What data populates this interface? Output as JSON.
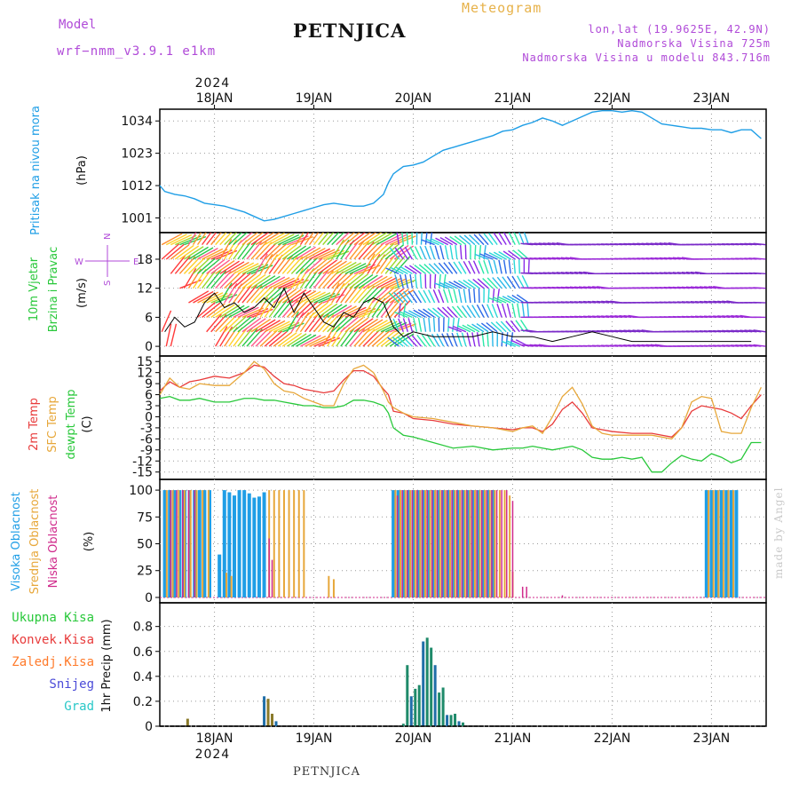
{
  "header": {
    "model_label": "Model",
    "model_name": "wrf−nmm_v3.9.1 e1km",
    "station": "PETNJICA",
    "title": "Meteogram",
    "lonlat": "lon,lat (19.9625E, 42.9N)",
    "elevation": "Nadmorska Visina 725m",
    "model_elevation": "Nadmorska Visina u modelu 843.716m"
  },
  "footer": {
    "station": "PETNJICA",
    "watermark": "made by Angel"
  },
  "colors": {
    "pressure": "#1f9ee6",
    "temp2m": "#e83b3b",
    "sfc": "#e7a73a",
    "dewpt": "#28c83a",
    "high_cloud": "#1f9ee6",
    "mid_cloud": "#e7a73a",
    "low_cloud": "#d02b8c",
    "total_precip": "#28c83a",
    "conv_precip": "#e83b3b",
    "frz_precip": "#ff7a2a",
    "snow": "#4b4bd8",
    "hail": "#2ac8c8",
    "wind_speed": "#000000",
    "wind_gust": "#e83b3b",
    "purple": "#b04ad8"
  },
  "chart_data": [
    {
      "type": "line",
      "name": "pressure",
      "ylabel": "Pritisak na nivou mora",
      "unit": "(hPa)",
      "yticks": [
        1001,
        1012,
        1023,
        1034
      ],
      "ylim": [
        996,
        1038
      ],
      "x_days": [
        "18JAN",
        "19JAN",
        "20JAN",
        "21JAN",
        "22JAN",
        "23JAN"
      ],
      "top_year": "2024",
      "xlim_days": [
        -0.55,
        5.55
      ],
      "series": [
        {
          "x": [
            -0.55,
            -0.5,
            -0.4,
            -0.3,
            -0.2,
            -0.1,
            0,
            0.1,
            0.2,
            0.3,
            0.4,
            0.5,
            0.6,
            0.7,
            0.8,
            0.9,
            1.0,
            1.1,
            1.2,
            1.3,
            1.4,
            1.5,
            1.6,
            1.7,
            1.75,
            1.8,
            1.9,
            2.0,
            2.1,
            2.2,
            2.3,
            2.4,
            2.5,
            2.6,
            2.7,
            2.8,
            2.9,
            3.0,
            3.1,
            3.2,
            3.3,
            3.4,
            3.5,
            3.6,
            3.7,
            3.8,
            3.9,
            4.0,
            4.1,
            4.2,
            4.3,
            4.4,
            4.5,
            4.6,
            4.7,
            4.8,
            4.9,
            5.0,
            5.1,
            5.2,
            5.3,
            5.4,
            5.5
          ],
          "values": [
            1012,
            1010,
            1009,
            1008.5,
            1007.5,
            1006,
            1005.5,
            1005,
            1004,
            1003,
            1001.5,
            1000,
            1000.5,
            1001.5,
            1002.5,
            1003.5,
            1004.5,
            1005.5,
            1006,
            1005.5,
            1005,
            1005,
            1006,
            1009,
            1013,
            1016,
            1018.5,
            1019,
            1020,
            1022,
            1024,
            1025,
            1026,
            1027,
            1028,
            1029,
            1030.5,
            1031,
            1032.5,
            1033.5,
            1035,
            1034,
            1032.5,
            1034,
            1035.5,
            1037,
            1037.5,
            1037.5,
            1037,
            1037.5,
            1037,
            1035,
            1033,
            1032.5,
            1032,
            1031.5,
            1031.5,
            1031,
            1031,
            1030,
            1031,
            1031,
            1028
          ]
        }
      ]
    },
    {
      "type": "scatter",
      "name": "wind",
      "ylabel": "10m Vjetar",
      "ylabel2": "Brzina i Pravac",
      "unit": "(m/s)",
      "yticks": [
        0,
        6,
        12,
        18
      ],
      "ylim": [
        -2,
        23.5
      ],
      "compass": [
        "N",
        "W",
        "E",
        "S"
      ],
      "series": [
        {
          "name": "speed",
          "x": [
            -0.5,
            -0.4,
            -0.3,
            -0.2,
            -0.1,
            0,
            0.1,
            0.2,
            0.3,
            0.4,
            0.5,
            0.6,
            0.7,
            0.8,
            0.9,
            1.0,
            1.1,
            1.2,
            1.3,
            1.4,
            1.5,
            1.6,
            1.7,
            1.8,
            1.9,
            2.0,
            2.2,
            2.4,
            2.6,
            2.8,
            3.0,
            3.2,
            3.4,
            3.6,
            3.8,
            4.0,
            4.2,
            4.4,
            4.6,
            4.8,
            5.0,
            5.2,
            5.4
          ],
          "values": [
            3,
            6,
            4,
            5,
            9,
            11,
            8,
            9,
            7,
            8,
            10,
            8,
            12,
            7,
            11,
            8,
            5,
            4,
            7,
            6,
            9,
            10,
            9,
            4,
            2,
            3,
            2,
            2,
            2,
            3,
            2,
            2,
            1,
            2,
            3,
            2,
            1,
            1,
            1,
            1,
            1,
            1,
            1
          ]
        }
      ]
    },
    {
      "type": "line",
      "name": "temperature",
      "ylabel": "2m Temp",
      "ylabel2": "SFC Temp",
      "ylabel3": "dewpt Temp",
      "unit": "(C)",
      "yticks": [
        15,
        12,
        9,
        6,
        3,
        0,
        -3,
        -6,
        -9,
        -12,
        -15
      ],
      "ylim": [
        -17,
        16.5
      ],
      "series": [
        {
          "name": "2m Temp",
          "x": [
            -0.55,
            -0.45,
            -0.35,
            -0.25,
            -0.15,
            0,
            0.15,
            0.3,
            0.4,
            0.5,
            0.6,
            0.7,
            0.8,
            0.9,
            1.0,
            1.1,
            1.2,
            1.3,
            1.4,
            1.5,
            1.6,
            1.7,
            1.75,
            1.8,
            1.9,
            2.0,
            2.2,
            2.4,
            2.6,
            2.8,
            3.0,
            3.1,
            3.2,
            3.3,
            3.4,
            3.5,
            3.6,
            3.7,
            3.8,
            3.9,
            4.0,
            4.2,
            4.4,
            4.6,
            4.7,
            4.8,
            4.9,
            5.0,
            5.1,
            5.2,
            5.3,
            5.4,
            5.5
          ],
          "values": [
            7,
            9.5,
            8,
            9.5,
            10,
            11,
            10.5,
            12,
            14,
            13.5,
            11,
            9,
            8.5,
            7.5,
            7,
            6.5,
            7,
            10,
            12.5,
            12.5,
            11,
            7.5,
            6,
            1.5,
            1,
            -0.5,
            -1,
            -2,
            -2.5,
            -3,
            -3.5,
            -3,
            -3,
            -4,
            -2,
            2,
            4,
            1,
            -3,
            -3.5,
            -4,
            -4.5,
            -4.5,
            -5.5,
            -3,
            1.5,
            3,
            2.5,
            2,
            1,
            -0.5,
            3,
            6
          ]
        },
        {
          "name": "SFC Temp",
          "x": [
            -0.55,
            -0.45,
            -0.35,
            -0.25,
            -0.15,
            0,
            0.15,
            0.3,
            0.4,
            0.5,
            0.6,
            0.7,
            0.8,
            0.9,
            1.0,
            1.1,
            1.2,
            1.3,
            1.4,
            1.5,
            1.6,
            1.7,
            1.75,
            1.8,
            1.9,
            2.0,
            2.2,
            2.4,
            2.6,
            2.8,
            3.0,
            3.1,
            3.2,
            3.3,
            3.4,
            3.5,
            3.6,
            3.7,
            3.8,
            3.9,
            4.0,
            4.2,
            4.4,
            4.6,
            4.7,
            4.8,
            4.9,
            5.0,
            5.1,
            5.2,
            5.3,
            5.4,
            5.5
          ],
          "values": [
            6,
            10.5,
            8,
            7.5,
            9,
            8.5,
            8.5,
            12,
            15,
            13,
            9,
            7,
            6.5,
            5,
            4,
            3,
            3,
            9,
            13,
            14,
            12,
            7,
            4,
            2.5,
            1,
            0,
            -0.5,
            -1.5,
            -2.5,
            -3,
            -4,
            -3,
            -2.5,
            -4.5,
            0,
            5.5,
            8,
            3.5,
            -2.5,
            -4.5,
            -5,
            -5,
            -5,
            -6,
            -3,
            4,
            5.5,
            5,
            -4,
            -4.5,
            -4.5,
            2.5,
            8
          ]
        },
        {
          "name": "dewpt Temp",
          "x": [
            -0.55,
            -0.45,
            -0.35,
            -0.25,
            -0.15,
            0,
            0.15,
            0.3,
            0.4,
            0.5,
            0.6,
            0.7,
            0.8,
            0.9,
            1.0,
            1.1,
            1.2,
            1.3,
            1.4,
            1.5,
            1.6,
            1.7,
            1.75,
            1.8,
            1.9,
            2.0,
            2.2,
            2.4,
            2.6,
            2.8,
            3.0,
            3.1,
            3.2,
            3.3,
            3.4,
            3.5,
            3.6,
            3.7,
            3.8,
            3.9,
            4.0,
            4.1,
            4.2,
            4.3,
            4.4,
            4.5,
            4.6,
            4.7,
            4.8,
            4.9,
            5.0,
            5.1,
            5.2,
            5.3,
            5.4,
            5.5
          ],
          "values": [
            5,
            5.5,
            4.5,
            4.5,
            5,
            4,
            4,
            5,
            5,
            4.5,
            4.5,
            4,
            3.5,
            3,
            3,
            2.5,
            2.5,
            3,
            4.5,
            4.5,
            4,
            3,
            1,
            -3,
            -5,
            -5.5,
            -7,
            -8.5,
            -8,
            -9,
            -8.5,
            -8.5,
            -8,
            -8.5,
            -9,
            -8.5,
            -8,
            -9,
            -11,
            -11.5,
            -11.5,
            -11,
            -11.5,
            -11,
            -15,
            -15,
            -12.5,
            -10.5,
            -11.5,
            -12,
            -10,
            -11,
            -12.5,
            -11.5,
            -7,
            -7
          ]
        }
      ]
    },
    {
      "type": "bar",
      "name": "cloud",
      "ylabel": "Visoka Oblacnost",
      "ylabel2": "Srednja Oblacnost",
      "ylabel3": "Niska Oblacnost",
      "unit": "(%)",
      "yticks": [
        0,
        25,
        50,
        75,
        100
      ],
      "ylim": [
        -5,
        110
      ],
      "series": [
        {
          "name": "Visoka Oblacnost",
          "x": [
            -0.5,
            -0.45,
            -0.4,
            -0.35,
            -0.3,
            -0.25,
            -0.2,
            -0.15,
            -0.1,
            -0.05,
            0.05,
            0.1,
            0.15,
            0.2,
            0.25,
            0.3,
            0.35,
            0.4,
            0.45,
            0.5,
            1.8,
            1.85,
            1.9,
            1.95,
            2.0,
            2.05,
            2.1,
            2.15,
            2.2,
            2.25,
            2.3,
            2.35,
            2.4,
            2.45,
            2.5,
            2.55,
            2.6,
            2.65,
            2.7,
            2.75,
            2.8,
            4.95,
            5.0,
            5.05,
            5.1,
            5.15,
            5.2,
            5.25
          ],
          "values": [
            100,
            100,
            100,
            100,
            100,
            100,
            100,
            100,
            100,
            100,
            40,
            100,
            98,
            95,
            100,
            100,
            97,
            93,
            94,
            98,
            100,
            100,
            100,
            100,
            100,
            100,
            100,
            100,
            100,
            100,
            100,
            100,
            100,
            100,
            100,
            100,
            100,
            100,
            100,
            100,
            100,
            100,
            100,
            100,
            100,
            100,
            100,
            100
          ]
        },
        {
          "name": "Srednja Oblacnost",
          "x": [
            -0.48,
            -0.42,
            -0.36,
            -0.3,
            -0.24,
            -0.18,
            -0.12,
            -0.06,
            0.12,
            0.17,
            0.55,
            0.6,
            0.65,
            0.7,
            0.75,
            0.8,
            0.85,
            0.9,
            1.15,
            1.2,
            1.82,
            1.87,
            1.92,
            1.97,
            2.02,
            2.07,
            2.12,
            2.17,
            2.22,
            2.27,
            2.32,
            2.37,
            2.42,
            2.47,
            2.52,
            2.57,
            2.62,
            2.67,
            2.72,
            2.77,
            2.82,
            2.87,
            2.92,
            2.97,
            3.0,
            4.97,
            5.02,
            5.07,
            5.12,
            5.17,
            5.22
          ],
          "values": [
            100,
            100,
            100,
            100,
            100,
            100,
            100,
            100,
            23,
            20,
            100,
            100,
            100,
            100,
            100,
            100,
            100,
            100,
            20,
            17,
            100,
            100,
            100,
            100,
            100,
            100,
            100,
            100,
            100,
            100,
            100,
            100,
            100,
            100,
            100,
            100,
            100,
            100,
            100,
            100,
            100,
            100,
            100,
            95,
            24,
            100,
            100,
            100,
            100,
            100,
            100
          ]
        },
        {
          "name": "Niska Oblacnost",
          "x": [
            -0.44,
            -0.38,
            -0.32,
            -0.26,
            -0.2,
            0.55,
            0.58,
            1.84,
            1.89,
            1.94,
            1.99,
            2.04,
            2.09,
            2.14,
            2.19,
            2.24,
            2.29,
            2.34,
            2.39,
            2.44,
            2.49,
            2.54,
            2.59,
            2.64,
            2.69,
            2.74,
            2.79,
            2.84,
            2.89,
            2.94,
            3.0,
            3.1,
            3.14,
            3.5
          ],
          "values": [
            100,
            100,
            100,
            100,
            100,
            55,
            35,
            95,
            100,
            100,
            100,
            100,
            100,
            100,
            100,
            100,
            100,
            100,
            100,
            100,
            100,
            100,
            100,
            100,
            100,
            100,
            100,
            100,
            100,
            100,
            90,
            10,
            10,
            2
          ]
        }
      ]
    },
    {
      "type": "bar",
      "name": "precip",
      "ylabel": "1hr Precip (mm)",
      "legend": [
        "Ukupna Kisa",
        "Konvek.Kisa",
        "Zaledj.Kisa",
        "Snijeg",
        "Grad"
      ],
      "yticks": [
        0,
        0.2,
        0.4,
        0.6,
        0.8
      ],
      "ylim": [
        0,
        0.99
      ],
      "bottom_year": "2024",
      "series": [
        {
          "name": "Ukupna Kisa",
          "x": [
            -0.27,
            0.5,
            0.54,
            0.58,
            0.62,
            1.9,
            1.94,
            1.98,
            2.02,
            2.06,
            2.1,
            2.14,
            2.18,
            2.22,
            2.26,
            2.3,
            2.34,
            2.38,
            2.42,
            2.46,
            2.5
          ],
          "values": [
            0.06,
            0.24,
            0.22,
            0.1,
            0.04,
            0.02,
            0.49,
            0.24,
            0.3,
            0.33,
            0.68,
            0.71,
            0.63,
            0.49,
            0.27,
            0.31,
            0.09,
            0.09,
            0.1,
            0.04,
            0.03
          ]
        }
      ]
    }
  ]
}
